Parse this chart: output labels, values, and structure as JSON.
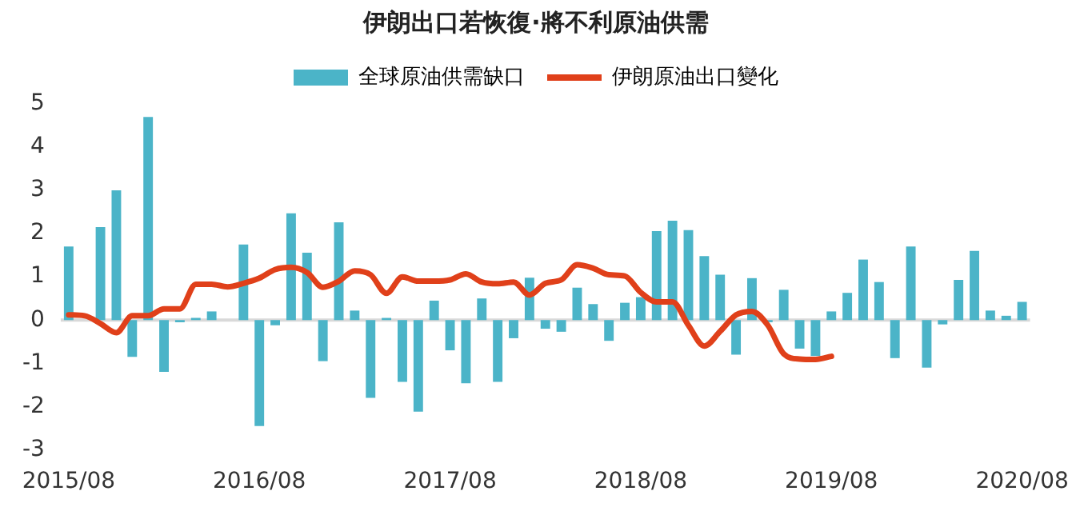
{
  "chart_data": {
    "type": "bar",
    "title": "伊朗出口若恢復·將不利原油供需",
    "categories": [
      "2015/08",
      null,
      null,
      null,
      null,
      null,
      null,
      null,
      null,
      null,
      null,
      null,
      "2016/08",
      null,
      null,
      null,
      null,
      null,
      null,
      null,
      null,
      null,
      null,
      null,
      "2017/08",
      null,
      null,
      null,
      null,
      null,
      null,
      null,
      null,
      null,
      null,
      null,
      "2018/08",
      null,
      null,
      null,
      null,
      null,
      null,
      null,
      null,
      null,
      null,
      null,
      "2019/08",
      null,
      null,
      null,
      null,
      null,
      null,
      null,
      null,
      null,
      null,
      null,
      "2020/08"
    ],
    "series": [
      {
        "name": "全球原油供需缺口",
        "color": "#4bb4c8",
        "values": [
          1.7,
          0,
          2.15,
          3.0,
          -0.85,
          4.7,
          -1.2,
          -0.05,
          0.05,
          0.2,
          0,
          1.75,
          -2.45,
          -0.12,
          2.47,
          1.56,
          -0.95,
          2.26,
          0.22,
          -1.8,
          0.05,
          -1.43,
          -2.12,
          0.45,
          -0.7,
          -1.46,
          0.5,
          -1.43,
          -0.42,
          0.98,
          -0.2,
          -0.27,
          0.75,
          0.37,
          -0.48,
          0.4,
          0.53,
          2.06,
          2.3,
          2.08,
          1.48,
          1.05,
          -0.8,
          0.97,
          -0.05,
          0.7,
          -0.66,
          -0.83,
          0.2,
          0.63,
          1.4,
          0.88,
          -0.88,
          1.7,
          -1.1,
          -0.1,
          0.93,
          1.6,
          0.22,
          0.1,
          0.42
        ]
      },
      {
        "name": "伊朗原油出口變化",
        "type": "line",
        "color": "#e0401a",
        "values": [
          0.12,
          0.1,
          -0.08,
          -0.29,
          0.1,
          0.1,
          0.26,
          0.26,
          0.83,
          0.83,
          0.77,
          0.85,
          0.97,
          1.17,
          1.22,
          1.1,
          0.76,
          0.9,
          1.14,
          1.05,
          0.62,
          1.0,
          0.9,
          0.9,
          0.93,
          1.07,
          0.88,
          0.84,
          0.88,
          0.58,
          0.85,
          0.93,
          1.28,
          1.2,
          1.05,
          1.02,
          0.64,
          0.42,
          0.42,
          -0.12,
          -0.6,
          -0.26,
          0.12,
          0.2,
          -0.12,
          -0.78,
          -0.9,
          -0.91,
          -0.84,
          null,
          null,
          null,
          null,
          null,
          null,
          null,
          null,
          null,
          null,
          null,
          null
        ]
      }
    ],
    "ylim": [
      -3,
      5
    ],
    "yticks": [
      -3,
      -2,
      -1,
      0,
      1,
      2,
      3,
      4,
      5
    ],
    "ref_lines": [
      {
        "axis": "y",
        "value": 0,
        "color": "#d9d9d9"
      }
    ],
    "grid": false,
    "legend": "top",
    "marker": "none"
  }
}
